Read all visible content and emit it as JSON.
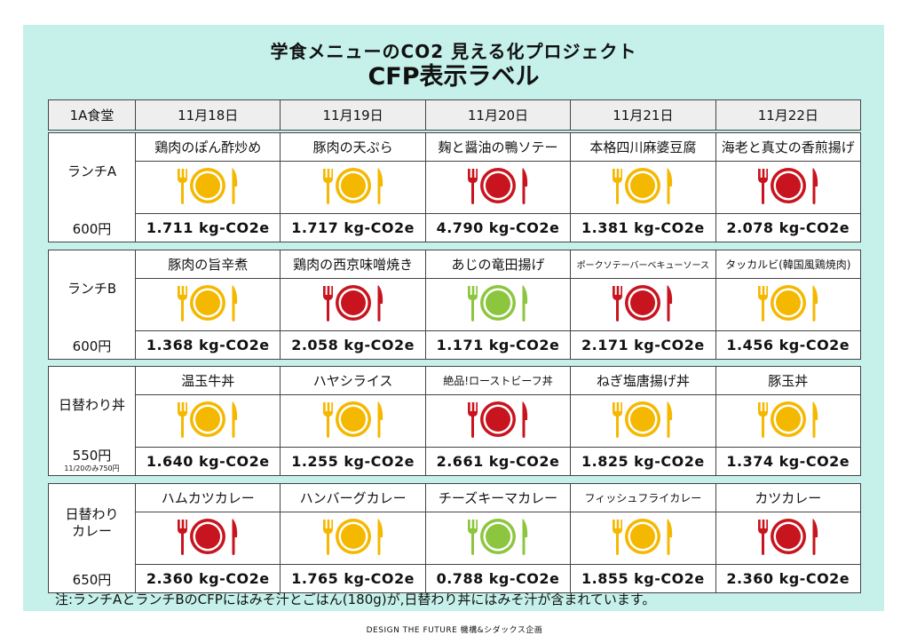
{
  "title_line1": "学食メニューのCO2 見える化プロジェクト",
  "title_line2": "CFP表示ラベル",
  "cafeteria": "1A食堂",
  "dates": [
    "11月18日",
    "11月19日",
    "11月20日",
    "11月21日",
    "11月22日"
  ],
  "colors": {
    "yellow": "#f5b800",
    "red": "#c8141e",
    "green": "#8cc63f",
    "background": "#c5f1ea"
  },
  "menus": [
    {
      "label": "ランチA",
      "price": "600円",
      "price_note": "",
      "items": [
        {
          "name": "鶏肉のぽん酢炒め",
          "co2": "1.711 kg-CO2e",
          "level": "yellow",
          "icon": "plate-fork-knife-icon"
        },
        {
          "name": "豚肉の天ぷら",
          "co2": "1.717 kg-CO2e",
          "level": "yellow",
          "icon": "plate-fork-knife-icon"
        },
        {
          "name": "麹と醤油の鴨ソテー",
          "co2": "4.790 kg-CO2e",
          "level": "red",
          "icon": "plate-fork-knife-icon"
        },
        {
          "name": "本格四川麻婆豆腐",
          "co2": "1.381 kg-CO2e",
          "level": "yellow",
          "icon": "plate-fork-knife-icon"
        },
        {
          "name": "海老と真丈の香煎揚げ",
          "co2": "2.078 kg-CO2e",
          "level": "red",
          "icon": "plate-fork-knife-icon"
        }
      ]
    },
    {
      "label": "ランチB",
      "price": "600円",
      "price_note": "",
      "items": [
        {
          "name": "豚肉の旨辛煮",
          "co2": "1.368 kg-CO2e",
          "level": "yellow",
          "icon": "plate-fork-knife-icon"
        },
        {
          "name": "鶏肉の西京味噌焼き",
          "co2": "2.058 kg-CO2e",
          "level": "red",
          "icon": "plate-fork-knife-icon"
        },
        {
          "name": "あじの竜田揚げ",
          "co2": "1.171 kg-CO2e",
          "level": "green",
          "icon": "plate-fork-knife-icon"
        },
        {
          "name": "ポークソテーバーベキューソース",
          "co2": "2.171 kg-CO2e",
          "level": "red",
          "icon": "plate-fork-knife-icon"
        },
        {
          "name": "タッカルビ(韓国風鶏焼肉)",
          "co2": "1.456 kg-CO2e",
          "level": "yellow",
          "icon": "plate-fork-knife-icon"
        }
      ]
    },
    {
      "label": "日替わり丼",
      "price": "550円",
      "price_note": "11/20のみ750円",
      "items": [
        {
          "name": "温玉牛丼",
          "co2": "1.640 kg-CO2e",
          "level": "yellow",
          "icon": "plate-fork-knife-icon"
        },
        {
          "name": "ハヤシライス",
          "co2": "1.255 kg-CO2e",
          "level": "yellow",
          "icon": "plate-fork-knife-icon"
        },
        {
          "name": "絶品!ローストビーフ丼",
          "co2": "2.661 kg-CO2e",
          "level": "red",
          "icon": "plate-fork-knife-icon"
        },
        {
          "name": "ねぎ塩唐揚げ丼",
          "co2": "1.825 kg-CO2e",
          "level": "yellow",
          "icon": "plate-fork-knife-icon"
        },
        {
          "name": "豚玉丼",
          "co2": "1.374 kg-CO2e",
          "level": "yellow",
          "icon": "plate-fork-knife-icon"
        }
      ]
    },
    {
      "label": "日替わり\nカレー",
      "price": "650円",
      "price_note": "",
      "items": [
        {
          "name": "ハムカツカレー",
          "co2": "2.360 kg-CO2e",
          "level": "red",
          "icon": "plate-fork-knife-icon"
        },
        {
          "name": "ハンバーグカレー",
          "co2": "1.765 kg-CO2e",
          "level": "yellow",
          "icon": "plate-fork-knife-icon"
        },
        {
          "name": "チーズキーマカレー",
          "co2": "0.788 kg-CO2e",
          "level": "green",
          "icon": "plate-fork-knife-icon"
        },
        {
          "name": "フィッシュフライカレー",
          "co2": "1.855 kg-CO2e",
          "level": "yellow",
          "icon": "plate-fork-knife-icon"
        },
        {
          "name": "カツカレー",
          "co2": "2.360 kg-CO2e",
          "level": "red",
          "icon": "plate-fork-knife-icon"
        }
      ]
    }
  ],
  "footnote": "注:ランチAとランチBのCFPにはみそ汁とごはん(180g)が,日替わり丼にはみそ汁が含まれています。",
  "credit": "DESIGN THE FUTURE 機構&シダックス企画"
}
